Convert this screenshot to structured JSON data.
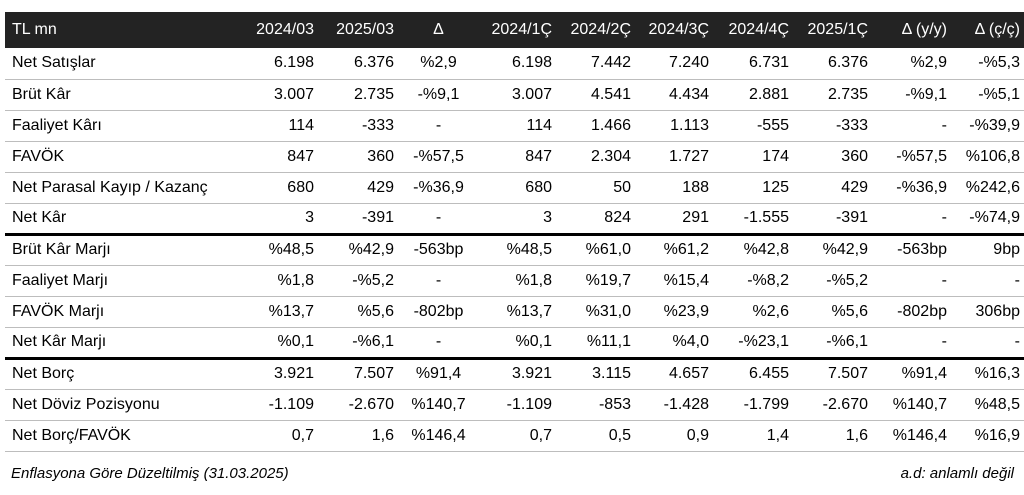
{
  "headers": [
    "TL mn",
    "2024/03",
    "2025/03",
    "Δ",
    "2024/1Ç",
    "2024/2Ç",
    "2024/3Ç",
    "2024/4Ç",
    "2025/1Ç",
    "Δ (y/y)",
    "Δ (ç/ç)"
  ],
  "rows": [
    {
      "label": "Net Satışlar",
      "values": [
        "6.198",
        "6.376",
        "%2,9",
        "6.198",
        "7.442",
        "7.240",
        "6.731",
        "6.376",
        "%2,9",
        "-%5,3"
      ]
    },
    {
      "label": "Brüt Kâr",
      "values": [
        "3.007",
        "2.735",
        "-%9,1",
        "3.007",
        "4.541",
        "4.434",
        "2.881",
        "2.735",
        "-%9,1",
        "-%5,1"
      ]
    },
    {
      "label": "Faaliyet Kârı",
      "values": [
        "114",
        "-333",
        "-",
        "114",
        "1.466",
        "1.113",
        "-555",
        "-333",
        "-",
        "-%39,9"
      ]
    },
    {
      "label": "FAVÖK",
      "values": [
        "847",
        "360",
        "-%57,5",
        "847",
        "2.304",
        "1.727",
        "174",
        "360",
        "-%57,5",
        "%106,8"
      ]
    },
    {
      "label": "Net Parasal Kayıp / Kazanç",
      "values": [
        "680",
        "429",
        "-%36,9",
        "680",
        "50",
        "188",
        "125",
        "429",
        "-%36,9",
        "%242,6"
      ]
    },
    {
      "label": "Net Kâr",
      "values": [
        "3",
        "-391",
        "-",
        "3",
        "824",
        "291",
        "-1.555",
        "-391",
        "-",
        "-%74,9"
      ]
    },
    {
      "label": "Brüt Kâr Marjı",
      "values": [
        "%48,5",
        "%42,9",
        "-563bp",
        "%48,5",
        "%61,0",
        "%61,2",
        "%42,8",
        "%42,9",
        "-563bp",
        "9bp"
      ]
    },
    {
      "label": "Faaliyet Marjı",
      "values": [
        "%1,8",
        "-%5,2",
        "-",
        "%1,8",
        "%19,7",
        "%15,4",
        "-%8,2",
        "-%5,2",
        "-",
        "-"
      ]
    },
    {
      "label": "FAVÖK Marjı",
      "values": [
        "%13,7",
        "%5,6",
        "-802bp",
        "%13,7",
        "%31,0",
        "%23,9",
        "%2,6",
        "%5,6",
        "-802bp",
        "306bp"
      ]
    },
    {
      "label": "Net Kâr Marjı",
      "values": [
        "%0,1",
        "-%6,1",
        "-",
        "%0,1",
        "%11,1",
        "%4,0",
        "-%23,1",
        "-%6,1",
        "-",
        "-"
      ]
    },
    {
      "label": "Net Borç",
      "values": [
        "3.921",
        "7.507",
        "%91,4",
        "3.921",
        "3.115",
        "4.657",
        "6.455",
        "7.507",
        "%91,4",
        "%16,3"
      ]
    },
    {
      "label": "Net Döviz Pozisyonu",
      "values": [
        "-1.109",
        "-2.670",
        "%140,7",
        "-1.109",
        "-853",
        "-1.428",
        "-1.799",
        "-2.670",
        "%140,7",
        "%48,5"
      ]
    },
    {
      "label": "Net Borç/FAVÖK",
      "values": [
        "0,7",
        "1,6",
        "%146,4",
        "0,7",
        "0,5",
        "0,9",
        "1,4",
        "1,6",
        "%146,4",
        "%16,9"
      ]
    }
  ],
  "section_breaks_after": [
    5,
    9
  ],
  "footer": {
    "left": "Enflasyona Göre Düzeltilmiş (31.03.2025)",
    "right": "a.d: anlamlı değil"
  },
  "colors": {
    "header_bg": "#232323",
    "header_text": "#ffffff"
  }
}
